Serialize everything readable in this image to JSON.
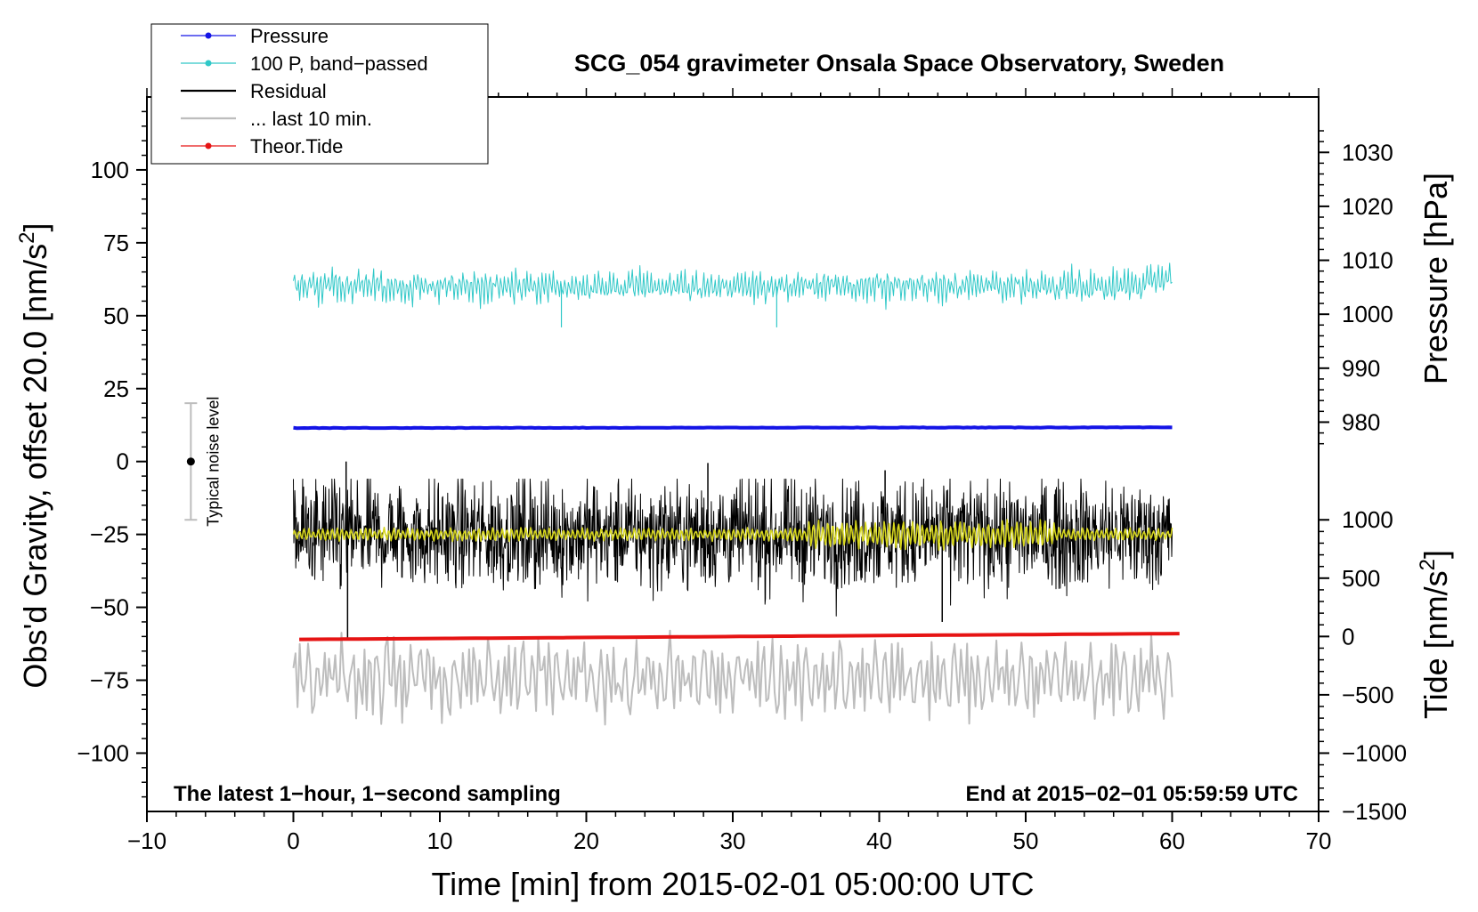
{
  "chart_data": {
    "type": "line",
    "title": "SCG_054 gravimeter Onsala Space Observatory, Sweden",
    "xlabel": "Time [min] from 2015-02-01 05:00:00 UTC",
    "ylabel_left": "Obs'd Gravity, offset 20.0 [nm/s²]",
    "ylabel_left_main": "Obs'd Gravity, offset 20.0 [nm/s",
    "ylabel_left_sup": "2",
    "ylabel_left_close": "]",
    "ylabel_right_top": "Pressure [hPa]",
    "ylabel_right_bottom": "Tide [nm/s²]",
    "ylabel_right_bottom_main": "Tide [nm/s",
    "ylabel_right_bottom_sup": "2",
    "ylabel_right_bottom_close": "]",
    "xlim": [
      -10,
      70
    ],
    "ylim_left": [
      -120,
      125
    ],
    "x_ticks": [
      -10,
      0,
      10,
      20,
      30,
      40,
      50,
      60,
      70
    ],
    "x_tick_labels": [
      "−10",
      "0",
      "10",
      "20",
      "30",
      "40",
      "50",
      "60",
      "70"
    ],
    "y_left_ticks": [
      100,
      75,
      50,
      25,
      0,
      -25,
      -50,
      -75,
      -100
    ],
    "y_left_tick_labels": [
      "100",
      "75",
      "50",
      "25",
      "0",
      "−25",
      "−50",
      "−75",
      "−100"
    ],
    "pressure_axis": {
      "ticks": [
        1030,
        1020,
        1010,
        1000,
        990,
        980
      ],
      "tick_labels": [
        "1030",
        "1020",
        "1010",
        "1000",
        "990",
        "980"
      ],
      "left_value_at_1000": 50.5,
      "left_units_per_hPa": 1.85
    },
    "tide_axis": {
      "ticks": [
        1000,
        500,
        0,
        -500,
        -1000,
        -1500
      ],
      "tick_labels": [
        "1000",
        "500",
        "0",
        "−500",
        "−1000",
        "−1500"
      ],
      "left_value_at_0": -60,
      "left_units_per_nms2": 0.04
    },
    "legend": [
      {
        "label": "Pressure",
        "color": "#1414e6",
        "marker": true
      },
      {
        "label": "100 P, band−passed",
        "color": "#30c8c8",
        "marker": true
      },
      {
        "label": "Residual",
        "color": "#000000",
        "marker": false
      },
      {
        "label": "... last 10 min.",
        "color": "#bdbdbd",
        "marker": false
      },
      {
        "label": "Theor.Tide",
        "color": "#e61414",
        "marker": true
      }
    ],
    "series": [
      {
        "name": "Pressure",
        "color": "#1414e6",
        "x_range": [
          0,
          60
        ],
        "start": 11.5,
        "end": 11.7,
        "noise": 0.15
      },
      {
        "name": "100 P, band−passed",
        "color": "#30c8c8",
        "x_range": [
          0,
          60
        ],
        "center": 60,
        "amplitude": 6,
        "min": 46,
        "max": 70
      },
      {
        "name": "Residual",
        "color": "#000000",
        "x_range": [
          0,
          60
        ],
        "center": -25,
        "amplitude": 22,
        "min": -61,
        "max": 0
      },
      {
        "name": "Residual smoothed",
        "color": "#d6d61e",
        "x_range": [
          0,
          60
        ],
        "center": -25,
        "amplitude": 2.5
      },
      {
        "name": "... last 10 min.",
        "color": "#bdbdbd",
        "x_range": [
          0,
          60
        ],
        "center": -74,
        "amplitude": 12,
        "min": -95,
        "max": -58
      },
      {
        "name": "Theor.Tide",
        "color": "#e61414",
        "x_range": [
          0.4,
          60.5
        ],
        "start": -61,
        "end": -59
      }
    ],
    "noise_bar": {
      "x": -7,
      "center": 0,
      "half_range": 20,
      "label": "Typical noise level"
    },
    "annotations": {
      "bottom_left": "The latest 1−hour, 1−second sampling",
      "bottom_right": "End at 2015−02−01 05:59:59 UTC"
    }
  }
}
